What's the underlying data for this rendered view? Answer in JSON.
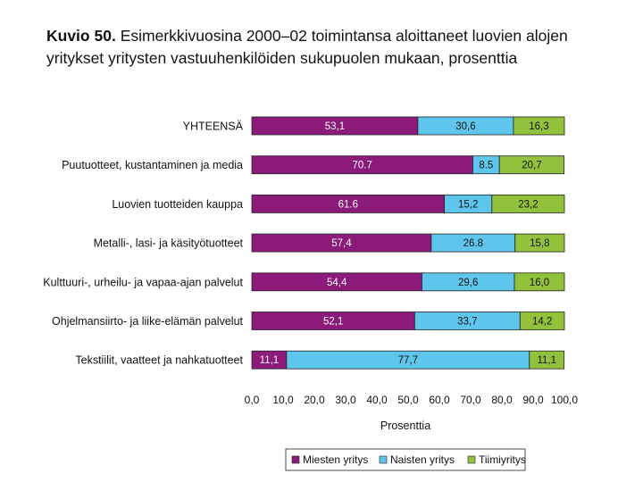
{
  "title": {
    "prefix": "Kuvio 50.",
    "text": "Esimerkkivuosina 2000–02 toimintansa aloittaneet luovien alojen yritykset yritysten vastuuhenkilöiden sukupuolen mukaan, prosenttia"
  },
  "colors": {
    "miehet": "#8b1a7a",
    "naiset": "#5ec6ec",
    "tiimi": "#92c13c"
  },
  "chart_data": {
    "type": "bar",
    "orientation": "horizontal",
    "stacked": true,
    "categories": [
      "YHTEENSÄ",
      "Puutuotteet, kustantaminen ja media",
      "Luovien tuotteiden kauppa",
      "Metalli-, lasi- ja käsityötuotteet",
      "Kulttuuri-, urheilu- ja vapaa-ajan palvelut",
      "Ohjelmansiirto- ja liike-elämän palvelut",
      "Tekstiilit, vaatteet ja nahkatuotteet"
    ],
    "series": [
      {
        "name": "Miesten yritys",
        "values": [
          53.1,
          70.7,
          61.6,
          57.4,
          54.4,
          52.1,
          11.1
        ],
        "labels": [
          "53,1",
          "70.7",
          "61.6",
          "57,4",
          "54,4",
          "52,1",
          "11,1"
        ]
      },
      {
        "name": "Naisten yritys",
        "values": [
          30.6,
          8.5,
          15.2,
          26.8,
          29.6,
          33.7,
          77.7
        ],
        "labels": [
          "30,6",
          "8.5",
          "15,2",
          "26.8",
          "29,6",
          "33,7",
          "77,7"
        ]
      },
      {
        "name": "Tiimiyritys",
        "values": [
          16.3,
          20.7,
          23.2,
          15.8,
          16.0,
          14.2,
          11.1
        ],
        "labels": [
          "16,3",
          "20,7",
          "23,2",
          "15,8",
          "16,0",
          "14,2",
          "11,1"
        ]
      }
    ],
    "xlabel": "Prosenttia",
    "xlim": [
      0,
      100
    ],
    "xticks": [
      "0,0",
      "10,0",
      "20,0",
      "30,0",
      "40,0",
      "50,0",
      "60,0",
      "70,0",
      "80,0",
      "90,0",
      "100,0"
    ],
    "grid": false,
    "legend_position": "bottom"
  }
}
